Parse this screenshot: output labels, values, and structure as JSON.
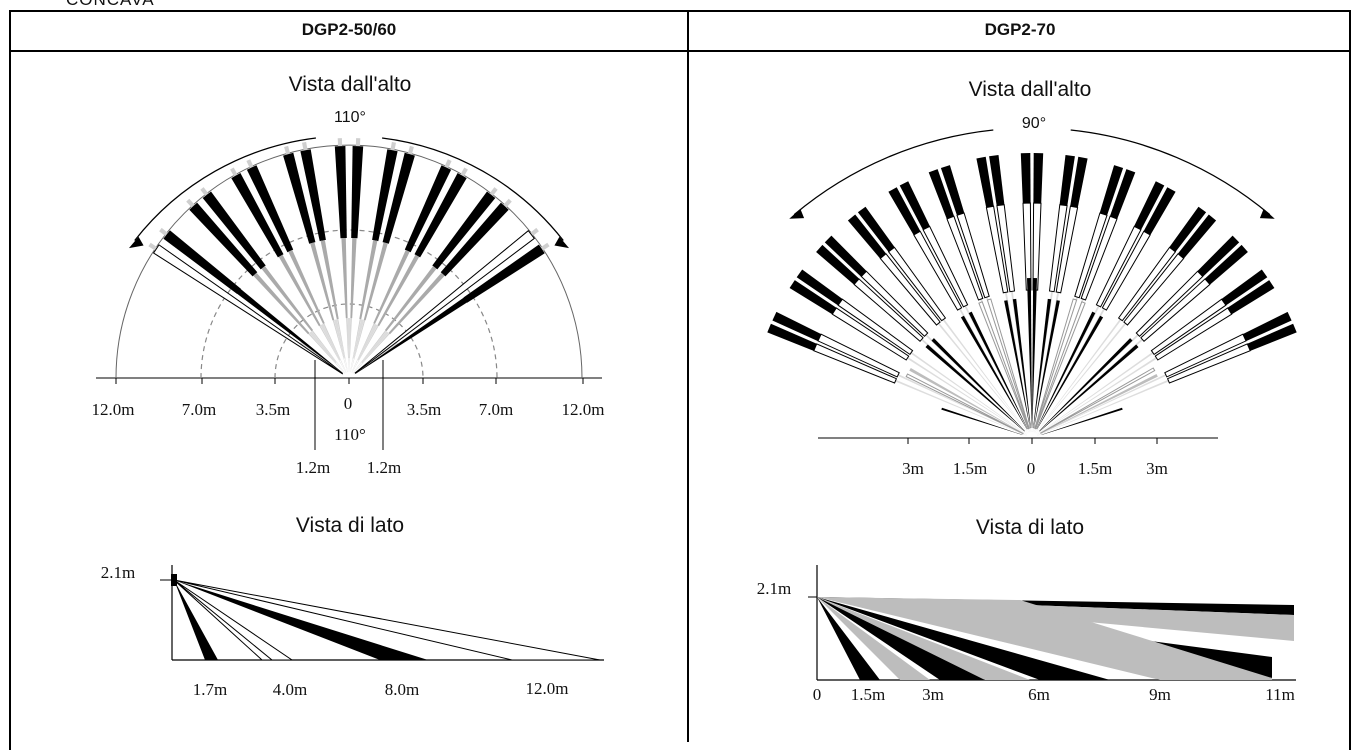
{
  "caption": "CONCAVA",
  "left": {
    "title": "DGP2-50/60",
    "top_view": {
      "title": "Vista dall'alto",
      "angle": "110°",
      "ruler": [
        "12.0m",
        "7.0m",
        "3.5m",
        "0",
        "3.5m",
        "7.0m",
        "12.0m"
      ],
      "inner_angle": "110°",
      "inner_ruler": [
        "1.2m",
        "1.2m"
      ]
    },
    "side_view": {
      "title": "Vista di lato",
      "height": "2.1m",
      "ruler": [
        "1.7m",
        "4.0m",
        "8.0m",
        "12.0m"
      ]
    }
  },
  "right": {
    "title": "DGP2-70",
    "top_view": {
      "title": "Vista dall'alto",
      "angle": "90°",
      "ruler": [
        "3m",
        "1.5m",
        "0",
        "1.5m",
        "3m"
      ]
    },
    "side_view": {
      "title": "Vista di lato",
      "height": "2.1m",
      "ruler": [
        "0",
        "1.5m",
        "3m",
        "6m",
        "9m",
        "11m"
      ]
    }
  }
}
